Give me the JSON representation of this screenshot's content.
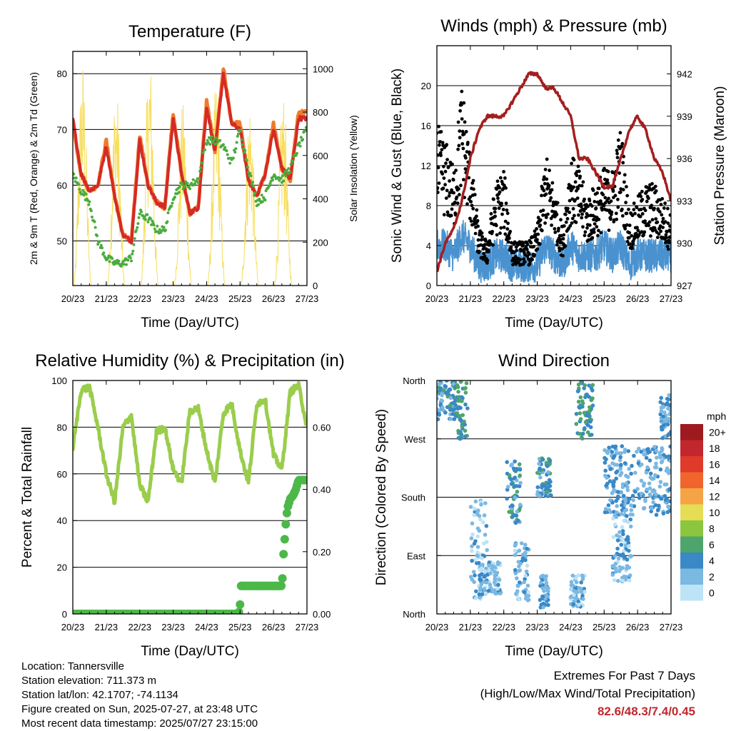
{
  "time_ticks": [
    "20/23",
    "21/23",
    "22/23",
    "23/23",
    "24/23",
    "25/23",
    "26/23",
    "27/23"
  ],
  "xlabel": "Time (Day/UTC)",
  "info": {
    "location": "Location: Tannersville",
    "elevation": "Station elevation: 711.373 m",
    "latlon": "Station lat/lon: 42.1707; -74.1134",
    "created": "Figure created on Sun, 2025-07-27, at 23:48 UTC",
    "recent": "Most recent data timestamp: 2025/07/27 23:15:00"
  },
  "extremes": {
    "title": "Extremes For Past 7 Days",
    "subtitle": "(High/Low/Max Wind/Total Precipitation)",
    "values": "82.6/48.3/7.4/0.45"
  },
  "colorbar": {
    "unit": "mph",
    "labels": [
      "20+",
      "18",
      "16",
      "14",
      "12",
      "10",
      "8",
      "6",
      "4",
      "2",
      "0"
    ],
    "colors": [
      "#9e1a1e",
      "#c1272d",
      "#e03a2b",
      "#f0652c",
      "#f5a445",
      "#e5dd55",
      "#8cc63e",
      "#4ea56b",
      "#3a88c6",
      "#7bb8e2",
      "#bde3f6"
    ]
  },
  "chart_data": [
    {
      "type": "line",
      "title": "Temperature (F)",
      "xlabel": "Time (Day/UTC)",
      "ylabel": "2m & 9m T (Red, Orange) & 2m Td (Green)",
      "y2label": "Solar Insolation (Yellow)",
      "ylim": [
        42,
        84
      ],
      "y2lim": [
        0,
        1080
      ],
      "yticks": [
        50,
        60,
        70,
        80
      ],
      "y2ticks": [
        0,
        200,
        400,
        600,
        800,
        1000
      ],
      "x_hours": [
        0,
        6,
        12,
        18,
        24,
        30,
        36,
        42,
        48,
        54,
        60,
        66,
        72,
        78,
        84,
        90,
        96,
        102,
        108,
        114,
        120,
        126,
        132,
        138,
        144,
        150,
        156,
        162,
        168
      ],
      "series": [
        {
          "name": "2m T",
          "color": "#d42a26",
          "values": [
            72,
            62,
            59,
            60,
            67,
            58,
            51,
            50,
            68,
            60,
            57,
            56,
            72,
            62,
            55,
            56,
            74,
            66,
            80,
            71,
            70,
            61,
            58,
            62,
            70,
            63,
            61,
            72,
            72
          ]
        },
        {
          "name": "9m T",
          "color": "#ef7a2c",
          "values": [
            71,
            62,
            59,
            60,
            68,
            58,
            51,
            50,
            69,
            60,
            57,
            56,
            73,
            62,
            55,
            56,
            75,
            66,
            81,
            71,
            71,
            61,
            58,
            62,
            71,
            63,
            61,
            73,
            73
          ]
        },
        {
          "name": "2m Td",
          "color": "#4aac3e",
          "values": [
            62,
            59,
            57,
            50,
            47,
            46,
            46,
            47,
            55,
            54,
            52,
            52,
            58,
            60,
            60,
            61,
            68,
            68,
            67,
            64,
            70,
            63,
            57,
            58,
            62,
            61,
            63,
            67,
            70
          ]
        },
        {
          "name": "Solar",
          "color": "#f7de5f",
          "peaks": [
            {
              "h": 7,
              "v": 1050
            },
            {
              "h": 31,
              "v": 950
            },
            {
              "h": 55,
              "v": 1080
            },
            {
              "h": 79,
              "v": 850
            },
            {
              "h": 103,
              "v": 950
            },
            {
              "h": 127,
              "v": 880
            },
            {
              "h": 151,
              "v": 900
            }
          ]
        }
      ]
    },
    {
      "type": "line",
      "title": "Winds (mph) & Pressure (mb)",
      "xlabel": "Time (Day/UTC)",
      "ylabel": "Sonic Wind & Gust (Blue, Black)",
      "y2label": "Station Pressure (Maroon)",
      "ylim": [
        0,
        24
      ],
      "y2lim": [
        927,
        944
      ],
      "yticks": [
        0,
        4,
        8,
        12,
        16,
        20
      ],
      "y2ticks": [
        927,
        930,
        933,
        936,
        939,
        942
      ],
      "x_hours": [
        0,
        6,
        12,
        18,
        24,
        30,
        36,
        42,
        48,
        54,
        60,
        66,
        72,
        78,
        84,
        90,
        96,
        102,
        108,
        114,
        120,
        126,
        132,
        138,
        144,
        150,
        156,
        162,
        168
      ],
      "series": [
        {
          "name": "Pressure",
          "color": "#a31f1f",
          "values": [
            928,
            930,
            931,
            933,
            936,
            938,
            939,
            939,
            939,
            940,
            941,
            942,
            942,
            941,
            941,
            940,
            939,
            936,
            936,
            935,
            934,
            934,
            936,
            938,
            939,
            938,
            936,
            935,
            933
          ]
        },
        {
          "name": "Gust",
          "color": "#000000",
          "values": [
            11,
            10,
            8,
            14,
            9,
            4,
            3,
            7,
            8,
            3,
            3,
            3,
            4,
            9,
            7,
            4,
            9,
            8,
            6,
            7,
            8,
            8,
            11,
            5,
            6,
            7,
            7,
            6,
            5
          ]
        },
        {
          "name": "Wind",
          "color": "#4a92cf",
          "values": [
            4,
            4,
            3,
            5,
            4,
            2,
            2,
            3,
            3,
            2,
            2,
            2,
            2,
            4,
            3,
            2,
            4,
            3,
            3,
            3,
            4,
            3,
            4,
            2,
            3,
            3,
            3,
            3,
            3
          ]
        }
      ]
    },
    {
      "type": "line",
      "title": "Relative Humidity (%) & Precipitation (in)",
      "xlabel": "Time (Day/UTC)",
      "ylabel": "Percent & Total Rainfall",
      "ylim": [
        0,
        100
      ],
      "y2lim": [
        0,
        0.75
      ],
      "yticks": [
        0,
        20,
        40,
        60,
        80,
        100
      ],
      "y2ticks": [
        "0.00",
        "0.20",
        "0.40",
        "0.60"
      ],
      "x_hours": [
        0,
        6,
        12,
        18,
        24,
        30,
        36,
        42,
        48,
        54,
        60,
        66,
        72,
        78,
        84,
        90,
        96,
        102,
        108,
        114,
        120,
        126,
        132,
        138,
        144,
        150,
        156,
        162,
        168
      ],
      "series": [
        {
          "name": "RH",
          "color": "#9acd4c",
          "values": [
            71,
            96,
            97,
            80,
            60,
            48,
            80,
            85,
            55,
            48,
            78,
            80,
            62,
            56,
            87,
            88,
            70,
            56,
            86,
            90,
            70,
            56,
            90,
            92,
            68,
            62,
            95,
            98,
            80
          ]
        },
        {
          "name": "Precip",
          "color": "#4cb848",
          "x_hours": [
            0,
            119,
            120,
            120.5,
            121,
            150,
            150.5,
            151,
            152,
            153,
            154,
            156,
            158,
            160,
            162,
            168
          ],
          "values": [
            0,
            0,
            0.03,
            0.09,
            0.09,
            0.09,
            0.12,
            0.18,
            0.24,
            0.3,
            0.34,
            0.37,
            0.38,
            0.4,
            0.43,
            0.43
          ]
        }
      ]
    },
    {
      "type": "scatter",
      "title": "Wind Direction",
      "xlabel": "Time (Day/UTC)",
      "ylabel": "Direction (Colored By Speed)",
      "ylim": [
        0,
        360
      ],
      "yticks": [
        "North",
        "East",
        "South",
        "West",
        "North"
      ],
      "clusters": [
        {
          "h0": 0,
          "h1": 14,
          "d0": 300,
          "d1": 360,
          "speed": 4
        },
        {
          "h0": 14,
          "h1": 22,
          "d0": 270,
          "d1": 360,
          "speed": 5
        },
        {
          "h0": 24,
          "h1": 36,
          "d0": 20,
          "d1": 180,
          "speed": 2
        },
        {
          "h0": 30,
          "h1": 46,
          "d0": 30,
          "d1": 80,
          "speed": 2
        },
        {
          "h0": 50,
          "h1": 60,
          "d0": 140,
          "d1": 240,
          "speed": 4
        },
        {
          "h0": 56,
          "h1": 66,
          "d0": 20,
          "d1": 110,
          "speed": 2
        },
        {
          "h0": 72,
          "h1": 82,
          "d0": 180,
          "d1": 240,
          "speed": 4
        },
        {
          "h0": 74,
          "h1": 80,
          "d0": 10,
          "d1": 60,
          "speed": 3
        },
        {
          "h0": 96,
          "h1": 106,
          "d0": 10,
          "d1": 60,
          "speed": 2
        },
        {
          "h0": 100,
          "h1": 112,
          "d0": 270,
          "d1": 360,
          "speed": 5
        },
        {
          "h0": 120,
          "h1": 168,
          "d0": 150,
          "d1": 260,
          "speed": 3
        },
        {
          "h0": 126,
          "h1": 140,
          "d0": 50,
          "d1": 150,
          "speed": 2
        },
        {
          "h0": 160,
          "h1": 168,
          "d0": 270,
          "d1": 340,
          "speed": 3
        }
      ]
    }
  ]
}
